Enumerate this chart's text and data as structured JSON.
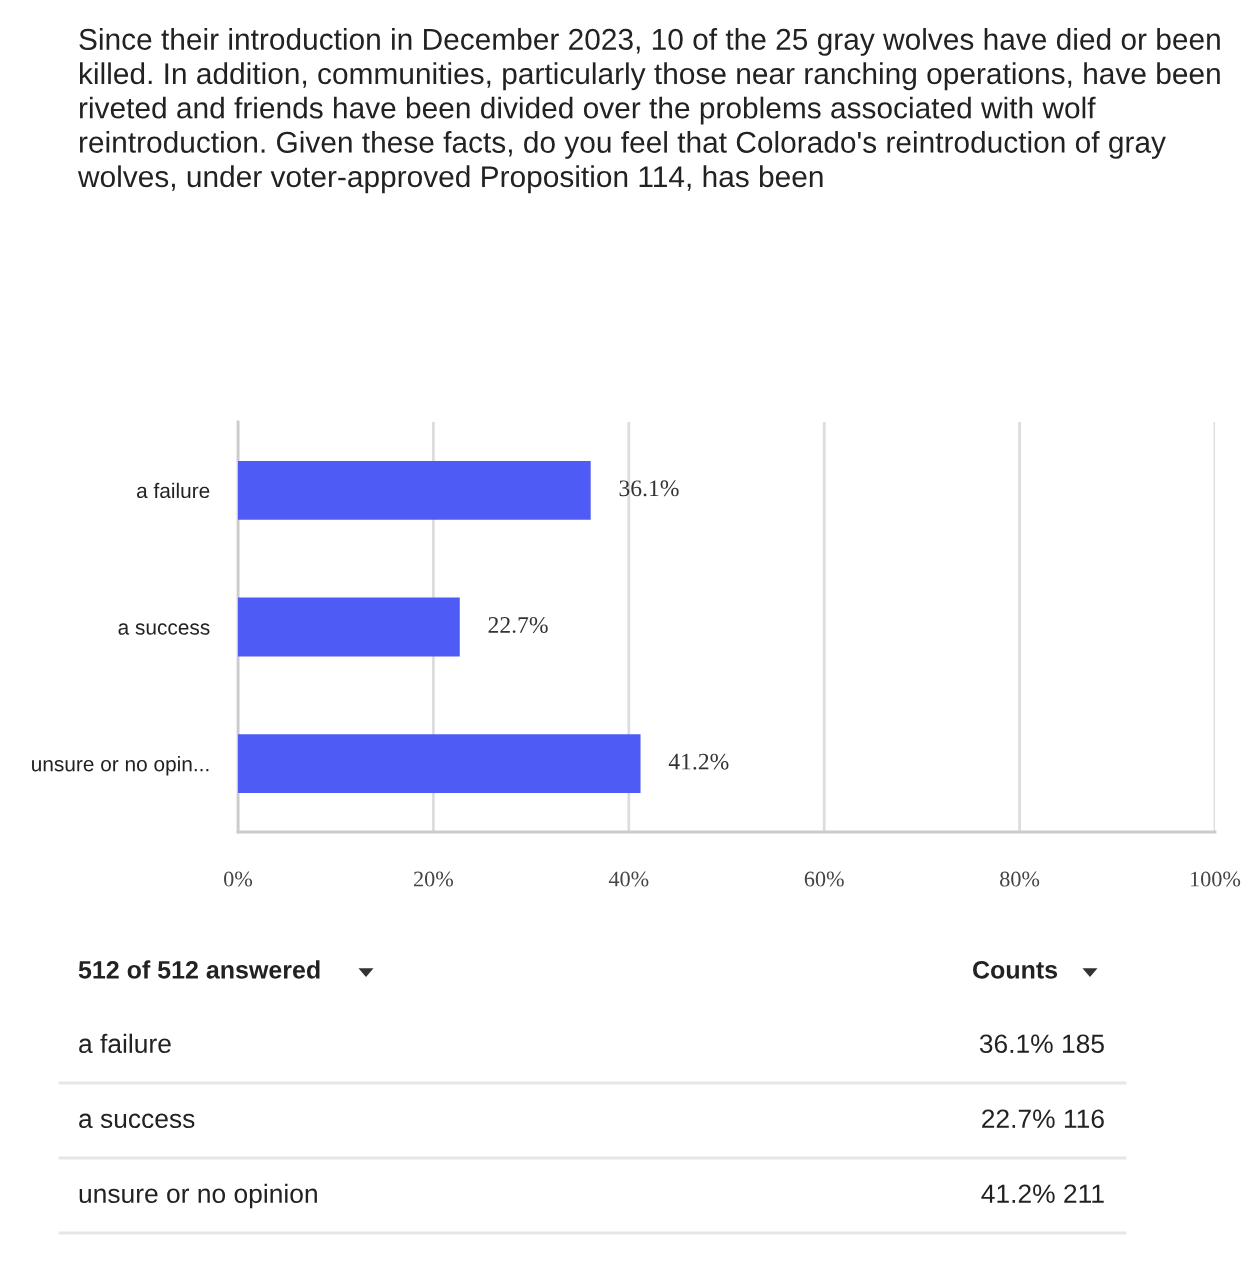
{
  "chart_data": {
    "type": "bar",
    "orientation": "horizontal",
    "title": "Since their introduction in December 2023, 10 of the 25 gray wolves have died or been killed. In addition, communities, particularly those near ranching operations, have been riveted and friends have been divided over the problems associated with wolf reintroduction. Given these facts, do you feel that Colorado's reintroduction of gray wolves, under voter-approved Proposition 114, has been",
    "categories": [
      "a failure",
      "a success",
      "unsure or no opin..."
    ],
    "values": [
      36.1,
      22.7,
      41.2
    ],
    "value_labels": [
      "36.1%",
      "22.7%",
      "41.2%"
    ],
    "color": "#4f5bf5",
    "xlim": [
      0,
      100
    ],
    "xticks": [
      {
        "value": 0,
        "label": "0%"
      },
      {
        "value": 20,
        "label": "20%"
      },
      {
        "value": 40,
        "label": "40%"
      },
      {
        "value": 60,
        "label": "60%"
      },
      {
        "value": 80,
        "label": "80%"
      },
      {
        "value": 100,
        "label": "100%"
      }
    ],
    "grid": "x",
    "annotations": [
      "512 of 512 answered",
      "Counts",
      "a failure",
      "36.1% 185",
      "a success",
      "22.7% 116",
      "unsure or no opinion",
      "41.2% 211"
    ]
  }
}
